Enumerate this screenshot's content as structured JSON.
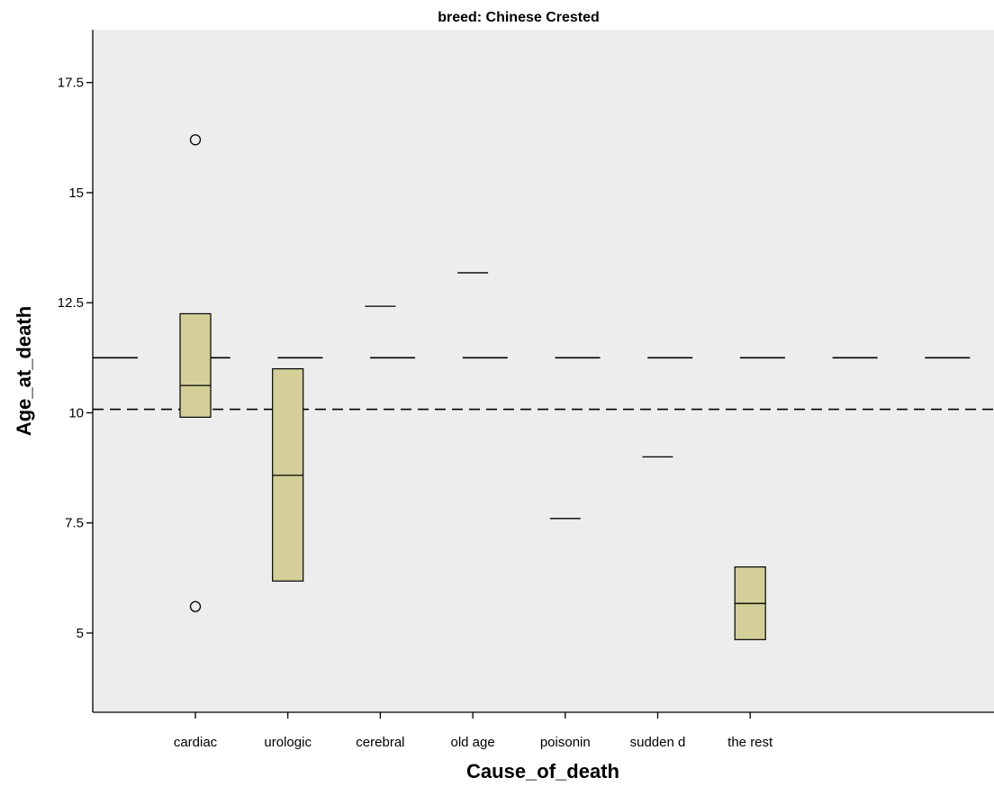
{
  "chart_data": {
    "type": "box",
    "title": "breed: Chinese Crested",
    "xlabel": "Cause_of_death",
    "ylabel": "Age_at_death",
    "ylim": [
      3.2,
      18.7
    ],
    "yticks": [
      5,
      7.5,
      10,
      12.5,
      15,
      17.5
    ],
    "ytick_labels": [
      "5",
      "7.5",
      "10",
      "12.5",
      "15",
      "17.5"
    ],
    "categories": [
      "cardiac",
      "urologic",
      "cerebral",
      "old age",
      "poisonin",
      "sudden d",
      "the rest"
    ],
    "boxes": [
      {
        "category": "cardiac",
        "q1": 9.9,
        "median": 10.62,
        "q3": 12.25,
        "outliers": [
          16.2,
          5.6
        ]
      },
      {
        "category": "urologic",
        "q1": 6.18,
        "median": 8.58,
        "q3": 11.0,
        "outliers": []
      },
      {
        "category": "cerebral",
        "q1": 12.42,
        "median": 12.42,
        "q3": 12.42,
        "outliers": []
      },
      {
        "category": "old age",
        "q1": 13.18,
        "median": 13.18,
        "q3": 13.18,
        "outliers": []
      },
      {
        "category": "poisonin",
        "q1": 7.6,
        "median": 7.6,
        "q3": 7.6,
        "outliers": []
      },
      {
        "category": "sudden d",
        "q1": 9.0,
        "median": 9.0,
        "q3": 9.0,
        "outliers": []
      },
      {
        "category": "the rest",
        "q1": 4.85,
        "median": 5.67,
        "q3": 6.5,
        "outliers": []
      }
    ],
    "reference_lines": [
      {
        "value": 11.25,
        "style": "long-dash"
      },
      {
        "value": 10.08,
        "style": "short-dash"
      }
    ],
    "grid": false,
    "legend": "none",
    "colors": {
      "plot_bg": "#ededed",
      "box_fill": "#d4cf98",
      "stroke": "#000000"
    }
  }
}
